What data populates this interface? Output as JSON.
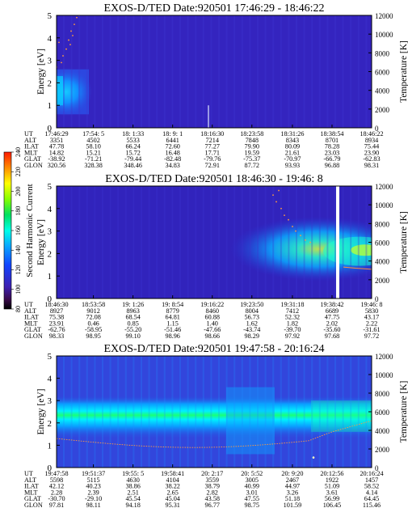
{
  "colorbar": {
    "label": "Second Harmonic Current",
    "ticks": [
      "240",
      "220",
      "200",
      "180",
      "160",
      "140",
      "120",
      "100",
      "80"
    ]
  },
  "chart_data": [
    {
      "type": "heatmap",
      "title": "EXOS-D/TED   Date:920501  17:46:29 - 18:46:22",
      "ylabel": "Energy [eV]",
      "ylabel_right": "Temperature [K]",
      "ylim": [
        0,
        5
      ],
      "ylim_right": [
        0,
        12000
      ],
      "yticks": [
        "0",
        "1",
        "2",
        "3",
        "4",
        "5"
      ],
      "yticks_right": [
        "0",
        "2000",
        "4000",
        "6000",
        "8000",
        "10000",
        "12000"
      ],
      "row_labels": [
        "UT",
        "ALT",
        "ILAT",
        "MLT",
        "GLAT",
        "GLON"
      ],
      "columns": [
        [
          "17:46:29",
          "3351",
          "47.78",
          "14.82",
          "-38.92",
          "320.56"
        ],
        [
          "17:54: 5",
          "4502",
          "58.10",
          "15.21",
          "-71.21",
          "328.38"
        ],
        [
          "18: 1:33",
          "5533",
          "66.24",
          "15.72",
          "-79.44",
          "348.46"
        ],
        [
          "18: 9: 1",
          "6441",
          "72.60",
          "16.48",
          "-82.48",
          "34.83"
        ],
        [
          "18:16:30",
          "7214",
          "77.27",
          "17.71",
          "-79.76",
          "72.91"
        ],
        [
          "18:23:58",
          "7848",
          "79.90",
          "19.59",
          "-75.37",
          "87.72"
        ],
        [
          "18:31:26",
          "8343",
          "80.09",
          "21.61",
          "-70.97",
          "93.93"
        ],
        [
          "18:38:54",
          "8701",
          "78.28",
          "23.03",
          "-66.79",
          "96.88"
        ],
        [
          "18:46:22",
          "8934",
          "75.44",
          "23.90",
          "-62.83",
          "98.31"
        ]
      ]
    },
    {
      "type": "heatmap",
      "title": "EXOS-D/TED   Date:920501  18:46:30 - 19:46: 8",
      "ylabel": "Energy [eV]",
      "ylabel_right": "Temperature [K]",
      "ylim": [
        0,
        5
      ],
      "ylim_right": [
        0,
        12000
      ],
      "yticks": [
        "0",
        "1",
        "2",
        "3",
        "4",
        "5"
      ],
      "yticks_right": [
        "0",
        "2000",
        "4000",
        "6000",
        "8000",
        "10000",
        "12000"
      ],
      "row_labels": [
        "UT",
        "ALT",
        "ILAT",
        "MLT",
        "GLAT",
        "GLON"
      ],
      "columns": [
        [
          "18:46:30",
          "8927",
          "75.38",
          "23.91",
          "-62.76",
          "98.33"
        ],
        [
          "18:53:58",
          "9012",
          "72.08",
          "0.46",
          "-58.95",
          "98.95"
        ],
        [
          "19: 1:26",
          "8963",
          "68.54",
          "0.85",
          "-55.20",
          "99.10"
        ],
        [
          "19: 8:54",
          "8779",
          "64.81",
          "1.15",
          "-51.46",
          "98.96"
        ],
        [
          "19:16:22",
          "8460",
          "60.88",
          "1.40",
          "-47.66",
          "98.66"
        ],
        [
          "19:23:50",
          "8004",
          "56.73",
          "1.62",
          "-43.74",
          "98.29"
        ],
        [
          "19:31:18",
          "7412",
          "52.32",
          "1.82",
          "-39.70",
          "97.92"
        ],
        [
          "19:38:42",
          "6689",
          "47.75",
          "2.02",
          "-35.60",
          "97.68"
        ],
        [
          "19:46: 8",
          "5830",
          "43.17",
          "2.22",
          "-31.61",
          "97.72"
        ]
      ]
    },
    {
      "type": "heatmap",
      "title": "EXOS-D/TED   Date:920501  19:47:58 - 20:16:24",
      "ylabel": "Energy [eV]",
      "ylabel_right": "Temperature [K]",
      "ylim": [
        0,
        5
      ],
      "ylim_right": [
        0,
        12000
      ],
      "yticks": [
        "0",
        "1",
        "2",
        "3",
        "4",
        "5"
      ],
      "yticks_right": [
        "0",
        "2000",
        "4000",
        "6000",
        "8000",
        "10000",
        "12000"
      ],
      "row_labels": [
        "UT",
        "ALT",
        "ILAT",
        "MLT",
        "GLAT",
        "GLON"
      ],
      "columns": [
        [
          "19:47:58",
          "5598",
          "42.12",
          "2.28",
          "-30.70",
          "97.81"
        ],
        [
          "19:51:37",
          "5115",
          "40.23",
          "2.39",
          "-29.10",
          "98.11"
        ],
        [
          "19:55: 5",
          "4630",
          "38.86",
          "2.51",
          "45.54",
          "94.18"
        ],
        [
          "19:58:41",
          "4104",
          "38.22",
          "2.65",
          "45.04",
          "95.31"
        ],
        [
          "20: 2:17",
          "3559",
          "38.79",
          "2.82",
          "43.58",
          "96.77"
        ],
        [
          "20: 5:52",
          "3005",
          "40.99",
          "3.01",
          "47.55",
          "98.75"
        ],
        [
          "20: 9:20",
          "2467",
          "44.97",
          "3.26",
          "51.18",
          "101.59"
        ],
        [
          "20:12:56",
          "1922",
          "51.09",
          "3.61",
          "56.99",
          "106.45"
        ],
        [
          "20:16:24",
          "1457",
          "58.52",
          "4.14",
          "64.45",
          "115.46"
        ]
      ]
    }
  ]
}
